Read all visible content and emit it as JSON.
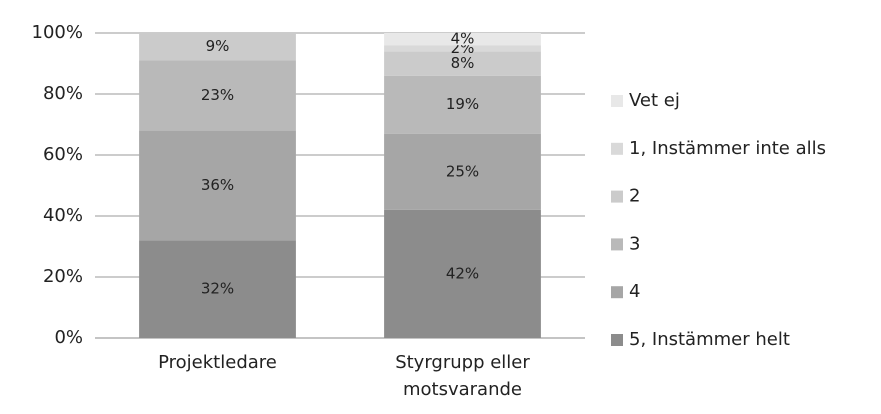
{
  "chart_data": {
    "type": "stacked_bar",
    "categories": [
      "Projektledare",
      "Styrgrupp eller motsvarande"
    ],
    "series": [
      {
        "name": "5, Instämmer helt",
        "color": "#8c8c8c",
        "values": [
          32,
          42
        ],
        "value_labels": [
          "32%",
          "42%"
        ]
      },
      {
        "name": "4",
        "color": "#a6a6a6",
        "values": [
          36,
          25
        ],
        "value_labels": [
          "36%",
          "25%"
        ]
      },
      {
        "name": "3",
        "color": "#b9b9b9",
        "values": [
          23,
          19
        ],
        "value_labels": [
          "23%",
          "19%"
        ]
      },
      {
        "name": "2",
        "color": "#cbcbcb",
        "values": [
          9,
          8
        ],
        "value_labels": [
          "9%",
          "8%"
        ]
      },
      {
        "name": "1, Instämmer inte alls",
        "color": "#d9d9d9",
        "values": [
          0,
          2
        ],
        "value_labels": [
          null,
          "2%"
        ]
      },
      {
        "name": "Vet ej",
        "color": "#e8e8e8",
        "values": [
          0,
          4
        ],
        "value_labels": [
          null,
          "4%"
        ]
      }
    ],
    "ylim": [
      0,
      100
    ],
    "yticks": [
      {
        "value": 0,
        "label": "0%"
      },
      {
        "value": 20,
        "label": "20%"
      },
      {
        "value": 40,
        "label": "40%"
      },
      {
        "value": 60,
        "label": "60%"
      },
      {
        "value": 80,
        "label": "80%"
      },
      {
        "value": 100,
        "label": "100%"
      }
    ],
    "grid": true,
    "legend": "right"
  }
}
